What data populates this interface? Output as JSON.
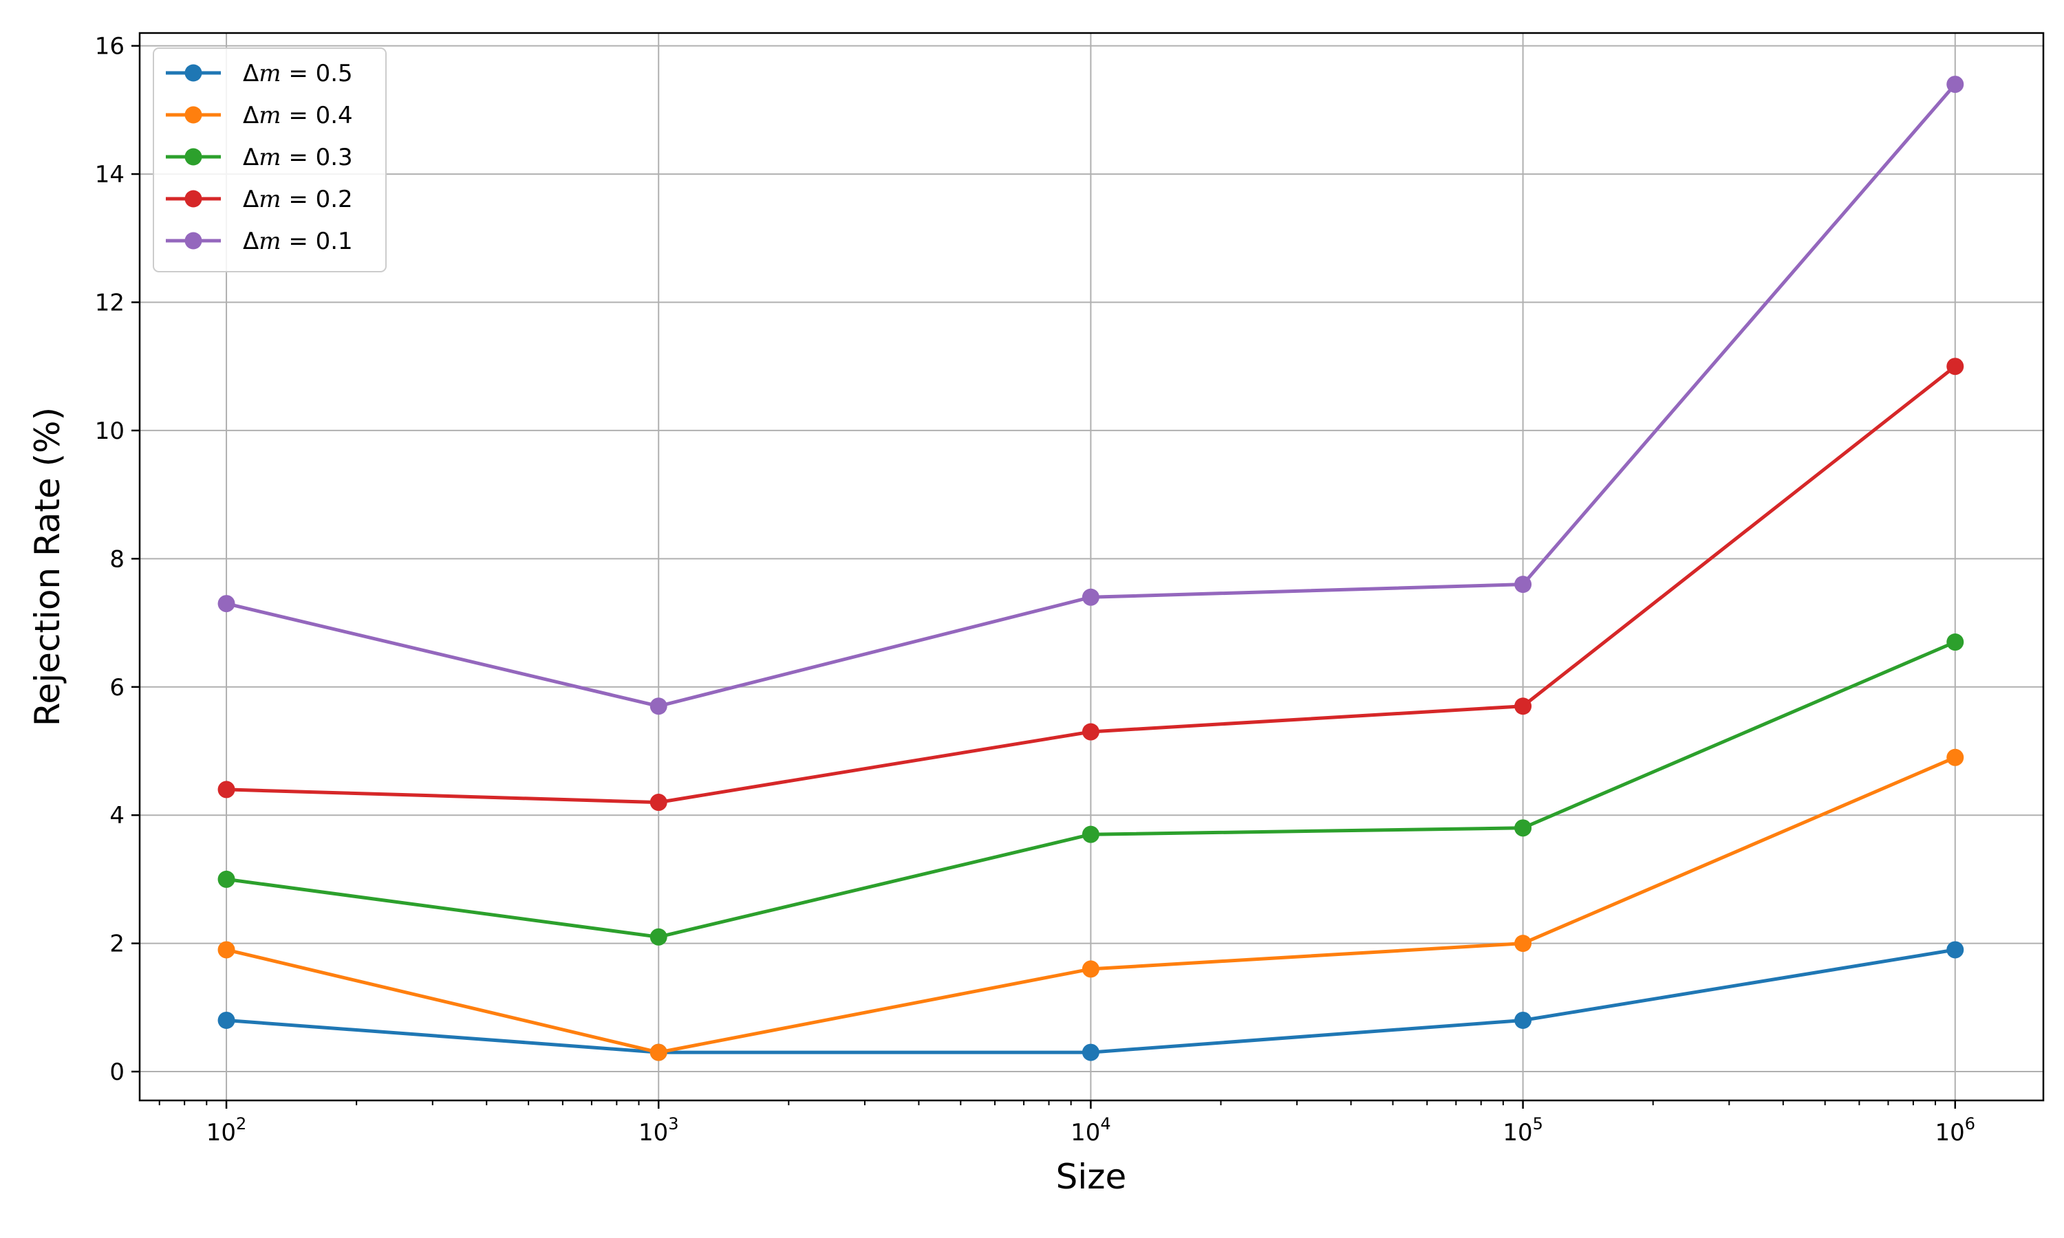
{
  "chart_data": {
    "type": "line",
    "title": "",
    "xlabel": "Size",
    "ylabel": "Rejection Rate (%)",
    "x_scale": "log",
    "x": [
      100,
      1000,
      10000,
      100000,
      1000000
    ],
    "x_ticks": [
      {
        "base": "10",
        "exp": "2",
        "value": 100
      },
      {
        "base": "10",
        "exp": "3",
        "value": 1000
      },
      {
        "base": "10",
        "exp": "4",
        "value": 10000
      },
      {
        "base": "10",
        "exp": "5",
        "value": 100000
      },
      {
        "base": "10",
        "exp": "6",
        "value": 1000000
      }
    ],
    "xlim": [
      63,
      1600000
    ],
    "ylim": [
      -0.45,
      16.2
    ],
    "y_ticks": [
      0,
      2,
      4,
      6,
      8,
      10,
      12,
      14,
      16
    ],
    "grid": true,
    "legend_position": "top-left",
    "series": [
      {
        "symbol": "Δ",
        "var": "m",
        "rest": " = 0.5",
        "color": "#1f77b4",
        "values": [
          0.8,
          0.3,
          0.3,
          0.8,
          1.9
        ]
      },
      {
        "symbol": "Δ",
        "var": "m",
        "rest": " = 0.4",
        "color": "#ff7f0e",
        "values": [
          1.9,
          0.3,
          1.6,
          2.0,
          4.9
        ]
      },
      {
        "symbol": "Δ",
        "var": "m",
        "rest": " = 0.3",
        "color": "#2ca02c",
        "values": [
          3.0,
          2.1,
          3.7,
          3.8,
          6.7
        ]
      },
      {
        "symbol": "Δ",
        "var": "m",
        "rest": " = 0.2",
        "color": "#d62728",
        "values": [
          4.4,
          4.2,
          5.3,
          5.7,
          11.0
        ]
      },
      {
        "symbol": "Δ",
        "var": "m",
        "rest": " = 0.1",
        "color": "#9467bd",
        "values": [
          7.3,
          5.7,
          7.4,
          7.6,
          15.4
        ]
      }
    ]
  }
}
